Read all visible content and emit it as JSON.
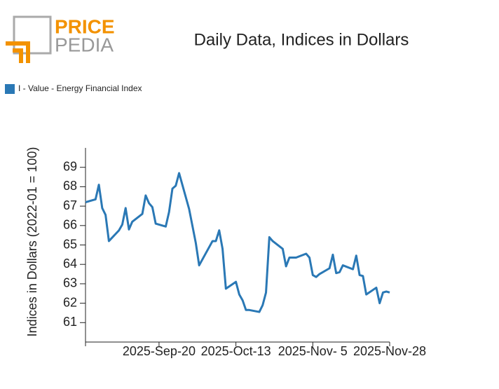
{
  "logo": {
    "top": "PRICE",
    "bottom": "PEDIA"
  },
  "chart_data": {
    "type": "line",
    "title": "Daily Data, Indices in Dollars",
    "y_label": "Indices in Dollars (2022-01 = 100)",
    "x": [
      "2025-08-29",
      "2025-09-01",
      "2025-09-02",
      "2025-09-03",
      "2025-09-04",
      "2025-09-05",
      "2025-09-08",
      "2025-09-09",
      "2025-09-10",
      "2025-09-11",
      "2025-09-12",
      "2025-09-15",
      "2025-09-16",
      "2025-09-17",
      "2025-09-18",
      "2025-09-19",
      "2025-09-22",
      "2025-09-23",
      "2025-09-24",
      "2025-09-25",
      "2025-09-26",
      "2025-09-29",
      "2025-10-01",
      "2025-10-02",
      "2025-10-06",
      "2025-10-07",
      "2025-10-08",
      "2025-10-09",
      "2025-10-10",
      "2025-10-13",
      "2025-10-14",
      "2025-10-15",
      "2025-10-16",
      "2025-10-17",
      "2025-10-20",
      "2025-10-21",
      "2025-10-22",
      "2025-10-23",
      "2025-10-24",
      "2025-10-27",
      "2025-10-28",
      "2025-10-29",
      "2025-10-31",
      "2025-11-03",
      "2025-11-04",
      "2025-11-05",
      "2025-11-06",
      "2025-11-07",
      "2025-11-10",
      "2025-11-11",
      "2025-11-12",
      "2025-11-13",
      "2025-11-14",
      "2025-11-17",
      "2025-11-18",
      "2025-11-19",
      "2025-11-20",
      "2025-11-21",
      "2025-11-24",
      "2025-11-25",
      "2025-11-26",
      "2025-11-27",
      "2025-11-28"
    ],
    "series": [
      {
        "name": "I - Value - Energy Financial Index",
        "color": "#2a78b5",
        "values": [
          67.2,
          67.35,
          68.1,
          66.9,
          66.55,
          65.2,
          65.75,
          66.05,
          66.9,
          65.8,
          66.2,
          66.6,
          67.55,
          67.15,
          66.95,
          66.1,
          65.95,
          66.7,
          67.9,
          68.05,
          68.7,
          66.85,
          65.1,
          63.95,
          65.2,
          65.2,
          65.75,
          64.8,
          62.75,
          63.1,
          62.45,
          62.15,
          61.65,
          61.65,
          61.55,
          61.9,
          62.55,
          65.4,
          65.2,
          64.8,
          63.9,
          64.35,
          64.35,
          64.55,
          64.35,
          63.45,
          63.35,
          63.5,
          63.8,
          64.5,
          63.55,
          63.6,
          63.95,
          63.75,
          64.45,
          63.45,
          63.4,
          62.45,
          62.8,
          62.0,
          62.55,
          62.6,
          62.55
        ]
      }
    ],
    "xlim": [
      "2025-08-29",
      "2025-11-28"
    ],
    "xticks": [
      {
        "value": "2025-09-20",
        "label": "2025-Sep-20"
      },
      {
        "value": "2025-10-13",
        "label": "2025-Oct-13"
      },
      {
        "value": "2025-11-05",
        "label": "2025-Nov- 5"
      },
      {
        "value": "2025-11-28",
        "label": "2025-Nov-28"
      }
    ],
    "ylim": [
      60,
      70
    ],
    "yticks": [
      61,
      62,
      63,
      64,
      65,
      66,
      67,
      68,
      69
    ],
    "grid": false,
    "legend": "top-left"
  }
}
